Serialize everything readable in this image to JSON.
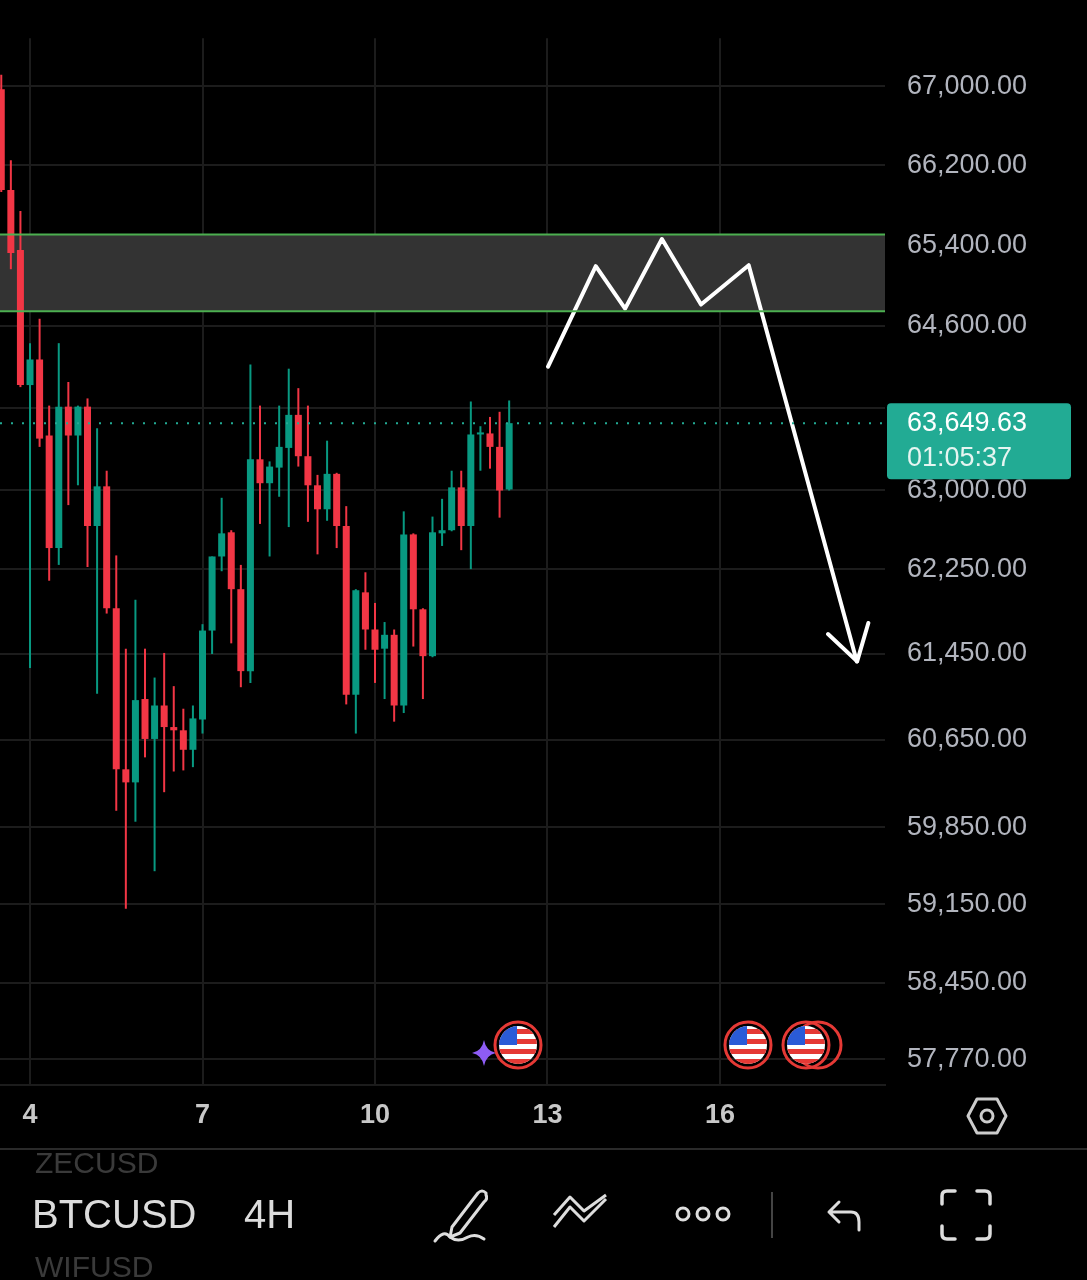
{
  "chart_data": {
    "type": "candlestick",
    "x": [
      3.5,
      3.6667,
      3.8333,
      4,
      4.1667,
      4.3333,
      4.5,
      4.6667,
      4.8333,
      5,
      5.1667,
      5.3333,
      5.5,
      5.6667,
      5.8333,
      6,
      6.1667,
      6.3333,
      6.5,
      6.6667,
      6.8333,
      7,
      7.1667,
      7.3333,
      7.5,
      7.6667,
      7.8333,
      8,
      8.1667,
      8.3333,
      8.5,
      8.6667,
      8.8333,
      9,
      9.1667,
      9.3333,
      9.5,
      9.6667,
      9.8333,
      10,
      10.1667,
      10.3333,
      10.5,
      10.6667,
      10.8333,
      11,
      11.1667,
      11.3333,
      11.5,
      11.6667,
      11.8333,
      12,
      12.1667,
      12.3333
    ],
    "ohlc": [
      [
        66970,
        67120,
        65930,
        65950
      ],
      [
        65950,
        66250,
        65160,
        65320
      ],
      [
        65350,
        65740,
        64000,
        64020
      ],
      [
        64020,
        64430,
        61320,
        64270
      ],
      [
        64270,
        64670,
        63420,
        63500
      ],
      [
        63530,
        63820,
        62140,
        62450
      ],
      [
        62450,
        64430,
        62290,
        63810
      ],
      [
        63810,
        64050,
        62860,
        63530
      ],
      [
        63530,
        63820,
        63050,
        63810
      ],
      [
        63810,
        63890,
        62270,
        62660
      ],
      [
        62660,
        63600,
        61080,
        63040
      ],
      [
        63040,
        63190,
        61830,
        61880
      ],
      [
        61880,
        62380,
        60000,
        60380
      ],
      [
        60380,
        61500,
        59110,
        60260
      ],
      [
        60260,
        61960,
        59900,
        61020
      ],
      [
        61030,
        61500,
        60490,
        60660
      ],
      [
        60660,
        61230,
        59450,
        60970
      ],
      [
        60970,
        61460,
        60170,
        60770
      ],
      [
        60770,
        61150,
        60360,
        60740
      ],
      [
        60740,
        60940,
        60370,
        60560
      ],
      [
        60560,
        60970,
        60400,
        60850
      ],
      [
        60840,
        61730,
        60710,
        61670
      ],
      [
        61670,
        62370,
        61450,
        62370
      ],
      [
        62370,
        62930,
        62230,
        62590
      ],
      [
        62600,
        62620,
        61550,
        62060
      ],
      [
        62060,
        62290,
        61140,
        61290
      ],
      [
        61290,
        64220,
        61180,
        63300
      ],
      [
        63300,
        63820,
        62680,
        63070
      ],
      [
        63070,
        63280,
        62370,
        63230
      ],
      [
        63220,
        63820,
        62940,
        63420
      ],
      [
        63410,
        64180,
        62650,
        63730
      ],
      [
        63730,
        63990,
        63230,
        63330
      ],
      [
        63330,
        63820,
        62700,
        63050
      ],
      [
        63050,
        63150,
        62390,
        62820
      ],
      [
        62820,
        63480,
        62710,
        63160
      ],
      [
        63160,
        63170,
        62450,
        62660
      ],
      [
        62660,
        62850,
        60980,
        61070
      ],
      [
        61070,
        62060,
        60710,
        62050
      ],
      [
        62030,
        62220,
        61490,
        61680
      ],
      [
        61680,
        61930,
        61180,
        61490
      ],
      [
        61500,
        61750,
        61030,
        61630
      ],
      [
        61630,
        61680,
        60820,
        60970
      ],
      [
        60970,
        62800,
        60900,
        62580
      ],
      [
        62580,
        62590,
        61520,
        61870
      ],
      [
        61870,
        61880,
        61030,
        61430
      ],
      [
        61430,
        62750,
        61420,
        62600
      ],
      [
        62590,
        62920,
        62470,
        62620
      ],
      [
        62620,
        63190,
        62610,
        63030
      ],
      [
        63030,
        63190,
        62430,
        62660
      ],
      [
        62660,
        63860,
        62250,
        63540
      ],
      [
        63540,
        63620,
        63190,
        63560
      ],
      [
        63550,
        63710,
        63210,
        63420
      ],
      [
        63420,
        63760,
        62740,
        63000
      ],
      [
        63010,
        63870,
        63000,
        63649.63
      ]
    ],
    "colors": [
      "#f23645",
      "#f23645",
      "#f23645",
      "#089981",
      "#f23645",
      "#f23645",
      "#089981",
      "#f23645",
      "#089981",
      "#f23645",
      "#089981",
      "#f23645",
      "#f23645",
      "#f23645",
      "#089981",
      "#f23645",
      "#089981",
      "#f23645",
      "#f23645",
      "#f23645",
      "#089981",
      "#089981",
      "#089981",
      "#089981",
      "#f23645",
      "#f23645",
      "#089981",
      "#f23645",
      "#089981",
      "#089981",
      "#089981",
      "#f23645",
      "#f23645",
      "#f23645",
      "#089981",
      "#f23645",
      "#f23645",
      "#089981",
      "#f23645",
      "#f23645",
      "#089981",
      "#f23645",
      "#089981",
      "#f23645",
      "#f23645",
      "#089981",
      "#089981",
      "#089981",
      "#f23645",
      "#089981",
      "#089981",
      "#f23645",
      "#f23645",
      "#089981"
    ],
    "xlim": [
      3.478,
      18.87
    ],
    "xticks": [
      4,
      7,
      10,
      13,
      16
    ],
    "ylim": [
      57545,
      67494
    ],
    "yticks": [
      {
        "value": 57770,
        "label": "57,770.00"
      },
      {
        "value": 58450,
        "label": "58,450.00"
      },
      {
        "value": 59150,
        "label": "59,150.00"
      },
      {
        "value": 59850,
        "label": "59,850.00"
      },
      {
        "value": 60650,
        "label": "60,650.00"
      },
      {
        "value": 61450,
        "label": "61,450.00"
      },
      {
        "value": 62250,
        "label": "62,250.00"
      },
      {
        "value": 63000,
        "label": "63,000.00"
      },
      {
        "value": 63800,
        "label": null
      },
      {
        "value": 64600,
        "label": "64,600.00"
      },
      {
        "value": 65400,
        "label": "65,400.00"
      },
      {
        "value": 66200,
        "label": "66,200.00"
      },
      {
        "value": 67000,
        "label": "67,000.00"
      }
    ],
    "log": true,
    "grid": true,
    "bands": [
      {
        "axis": "y",
        "from": 64745,
        "to": 65505,
        "color": "#333333"
      }
    ],
    "ref_lines": [
      {
        "axis": "y",
        "value": 63649.63,
        "label": "63,649.63",
        "color": "#22ab94",
        "line_style": "dotted"
      },
      {
        "axis": "y",
        "value": 64745,
        "color": "#4caf50",
        "line_style": "solid"
      },
      {
        "axis": "y",
        "value": 65505,
        "color": "#4caf50",
        "line_style": "solid"
      }
    ],
    "series": [
      {
        "type": "line",
        "x": [
          13.01,
          13.84,
          14.35,
          14.99,
          15.67,
          16.5,
          18.38
        ],
        "values": [
          64200,
          65190,
          64770,
          65460,
          64810,
          65200,
          61380
        ],
        "color": "#ffffff"
      }
    ],
    "marker": "none",
    "annotations": [
      "BTCUSD",
      "4H",
      "ZECUSD",
      "WIFUSD",
      "01:05:37"
    ]
  }
}
